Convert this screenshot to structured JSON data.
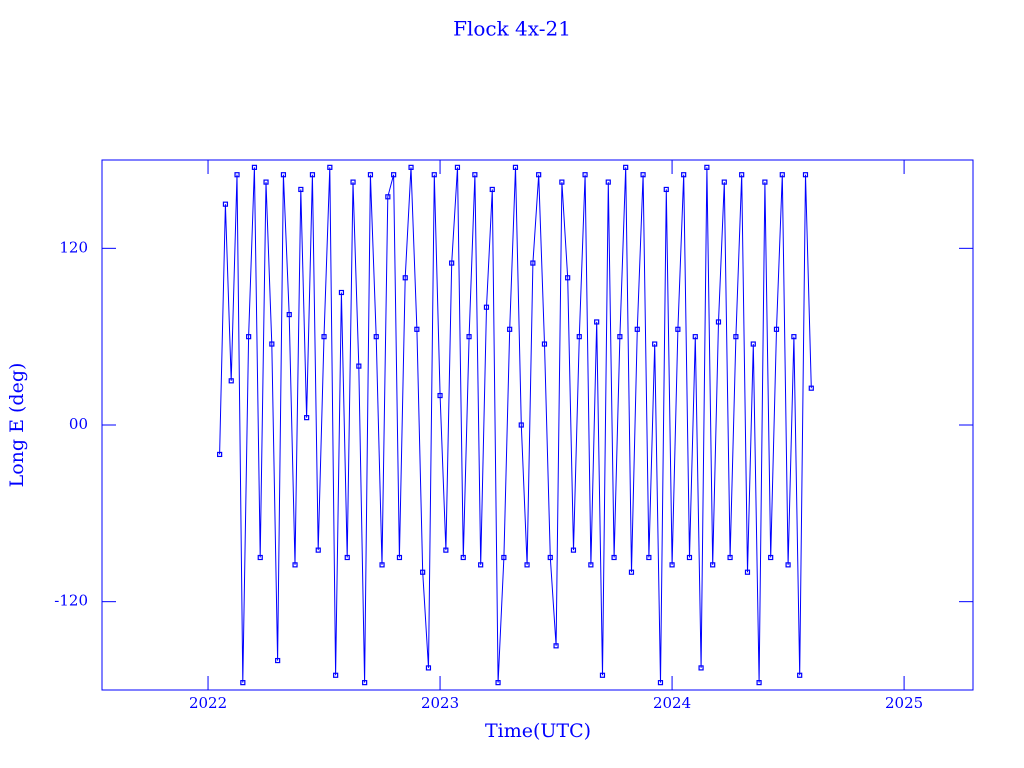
{
  "chart_data": {
    "type": "line",
    "title": "Flock 4x-21",
    "xlabel": "Time(UTC)",
    "ylabel": "Long E (deg)",
    "color": "#0000ff",
    "marker": "square",
    "xlim": [
      2021.543,
      2025.297
    ],
    "xticks": [
      2022,
      2023,
      2024,
      2025
    ],
    "ylim": [
      -180,
      180
    ],
    "yticks": [
      {
        "value": -120,
        "label": "-120"
      },
      {
        "value": 0,
        "label": "00"
      },
      {
        "value": 120,
        "label": "120"
      }
    ],
    "x": [
      2022.05,
      2022.075,
      2022.1,
      2022.125,
      2022.15,
      2022.175,
      2022.2,
      2022.225,
      2022.25,
      2022.275,
      2022.3,
      2022.325,
      2022.35,
      2022.375,
      2022.4,
      2022.425,
      2022.45,
      2022.475,
      2022.5,
      2022.525,
      2022.55,
      2022.575,
      2022.6,
      2022.625,
      2022.65,
      2022.675,
      2022.7,
      2022.725,
      2022.75,
      2022.775,
      2022.8,
      2022.825,
      2022.85,
      2022.875,
      2022.9,
      2022.925,
      2022.95,
      2022.975,
      2023,
      2023.025,
      2023.05,
      2023.075,
      2023.1,
      2023.125,
      2023.15,
      2023.175,
      2023.2,
      2023.225,
      2023.25,
      2023.275,
      2023.3,
      2023.325,
      2023.35,
      2023.375,
      2023.4,
      2023.425,
      2023.45,
      2023.475,
      2023.5,
      2023.525,
      2023.55,
      2023.575,
      2023.6,
      2023.625,
      2023.65,
      2023.675,
      2023.7,
      2023.725,
      2023.75,
      2023.775,
      2023.8,
      2023.825,
      2023.85,
      2023.875,
      2023.9,
      2023.925,
      2023.95,
      2023.975,
      2024,
      2024.025,
      2024.05,
      2024.075,
      2024.1,
      2024.125,
      2024.15,
      2024.175,
      2024.2,
      2024.225,
      2024.25,
      2024.275,
      2024.3,
      2024.325,
      2024.35,
      2024.375,
      2024.4,
      2024.425,
      2024.45,
      2024.475,
      2024.5,
      2024.525,
      2024.55,
      2024.575,
      2024.6
    ],
    "values": [
      -20,
      150,
      30,
      170,
      -175,
      60,
      175,
      -90,
      165,
      55,
      -160,
      170,
      75,
      -95,
      160,
      5,
      170,
      -85,
      60,
      175,
      -170,
      90,
      -90,
      165,
      40,
      -175,
      170,
      60,
      -95,
      155,
      170,
      -90,
      100,
      175,
      65,
      -100,
      -165,
      170,
      20,
      -85,
      110,
      175,
      -90,
      60,
      170,
      -95,
      80,
      160,
      -175,
      -90,
      65,
      175,
      0,
      -95,
      110,
      170,
      55,
      -90,
      -150,
      165,
      100,
      -85,
      60,
      170,
      -95,
      70,
      -170,
      165,
      -90,
      60,
      175,
      -100,
      65,
      170,
      -90,
      55,
      -175,
      160,
      -95,
      65,
      170,
      -90,
      60,
      -165,
      175,
      -95,
      70,
      165,
      -90,
      60,
      170,
      -100,
      55,
      -175,
      165,
      -90,
      65,
      170,
      -95,
      60,
      -170,
      170,
      25
    ]
  }
}
